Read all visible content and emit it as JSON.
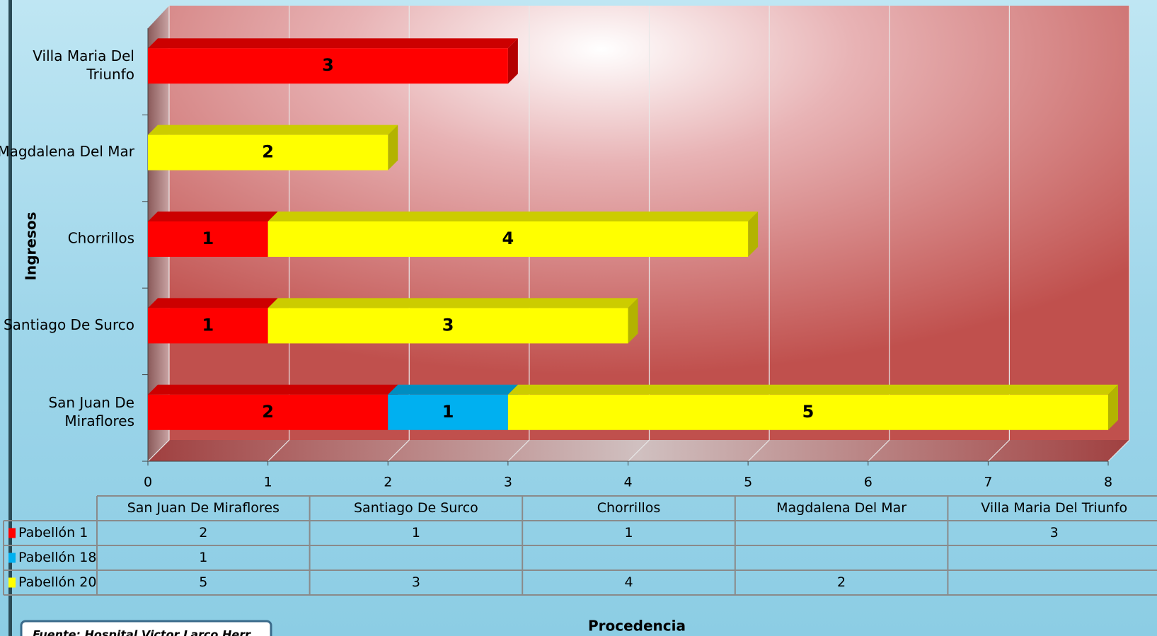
{
  "chart_data": {
    "type": "bar",
    "orientation": "horizontal",
    "stacked": true,
    "categories": [
      "San Juan De Miraflores",
      "Santiago De Surco",
      "Chorrillos",
      "Magdalena Del Mar",
      "Villa Maria Del Triunfo"
    ],
    "series": [
      {
        "name": "Pabellón 1",
        "color": "#ff0000",
        "values": [
          2,
          1,
          1,
          null,
          3
        ]
      },
      {
        "name": "Pabellón 18",
        "color": "#00b0f0",
        "values": [
          1,
          null,
          null,
          null,
          null
        ]
      },
      {
        "name": "Pabellón 20",
        "color": "#ffff00",
        "values": [
          5,
          3,
          4,
          2,
          null
        ]
      }
    ],
    "xlim": [
      0,
      8
    ],
    "xticks": [
      0,
      1,
      2,
      3,
      4,
      5,
      6,
      7,
      8
    ],
    "x_label": "Procedencia",
    "y_label": "Ingresos",
    "grid": true,
    "source": "Fuente: Hospital Victor Larco Herr"
  }
}
